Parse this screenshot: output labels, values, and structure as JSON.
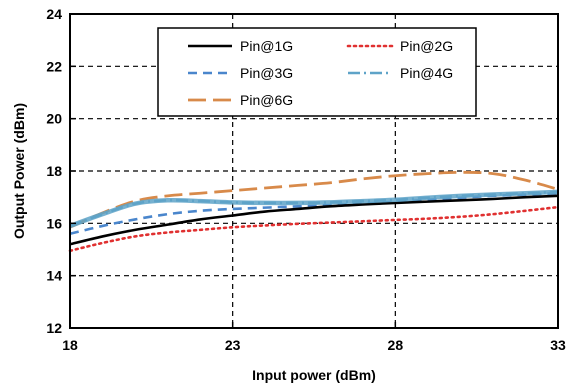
{
  "chart_data": {
    "type": "line",
    "title": "",
    "xlabel": "Input power (dBm)",
    "ylabel": "Output Power (dBm)",
    "xlim": [
      18,
      33
    ],
    "ylim": [
      12,
      24
    ],
    "xticks": [
      18,
      23,
      28,
      33
    ],
    "yticks": [
      12,
      14,
      16,
      18,
      20,
      22,
      24
    ],
    "grid": true,
    "legend_position": "top-center",
    "series": [
      {
        "name": "Pin@1G",
        "color": "#000000",
        "dash": "solid",
        "x": [
          18,
          19,
          20,
          21,
          22,
          23,
          24,
          25,
          26,
          27,
          28,
          29,
          30,
          31,
          32,
          33
        ],
        "y": [
          15.2,
          15.5,
          15.75,
          15.95,
          16.15,
          16.3,
          16.45,
          16.55,
          16.65,
          16.72,
          16.78,
          16.83,
          16.88,
          16.93,
          17.0,
          17.05
        ]
      },
      {
        "name": "Pin@2G",
        "color": "#e03030",
        "dash": "dotted",
        "x": [
          18,
          19,
          20,
          21,
          22,
          23,
          24,
          25,
          26,
          27,
          28,
          29,
          30,
          31,
          32,
          33
        ],
        "y": [
          14.95,
          15.25,
          15.5,
          15.65,
          15.75,
          15.85,
          15.92,
          15.98,
          16.03,
          16.08,
          16.13,
          16.18,
          16.25,
          16.35,
          16.48,
          16.62
        ]
      },
      {
        "name": "Pin@3G",
        "color": "#4a86cc",
        "dash": "dashed",
        "x": [
          18,
          19,
          20,
          21,
          22,
          23,
          24,
          25,
          26,
          27,
          28,
          29,
          30,
          31,
          32,
          33
        ],
        "y": [
          15.6,
          15.9,
          16.15,
          16.35,
          16.48,
          16.55,
          16.6,
          16.65,
          16.7,
          16.75,
          16.82,
          16.9,
          16.98,
          17.05,
          17.1,
          17.15
        ]
      },
      {
        "name": "Pin@4G",
        "color": "#5ea3c8",
        "dash": "dashdot",
        "x": [
          18,
          19,
          20,
          21,
          22,
          23,
          24,
          25,
          26,
          27,
          28,
          29,
          30,
          31,
          32,
          33
        ],
        "y": [
          15.9,
          16.35,
          16.75,
          16.88,
          16.85,
          16.8,
          16.78,
          16.78,
          16.8,
          16.85,
          16.9,
          16.98,
          17.05,
          17.1,
          17.15,
          17.2
        ]
      },
      {
        "name": "Pin@6G",
        "color": "#d88a4a",
        "dash": "longdash",
        "x": [
          18,
          19,
          20,
          21,
          22,
          23,
          24,
          25,
          26,
          27,
          28,
          29,
          30,
          31,
          32,
          33
        ],
        "y": [
          15.85,
          16.4,
          16.85,
          17.05,
          17.15,
          17.25,
          17.35,
          17.45,
          17.55,
          17.7,
          17.82,
          17.9,
          17.95,
          17.9,
          17.65,
          17.3
        ]
      }
    ]
  }
}
